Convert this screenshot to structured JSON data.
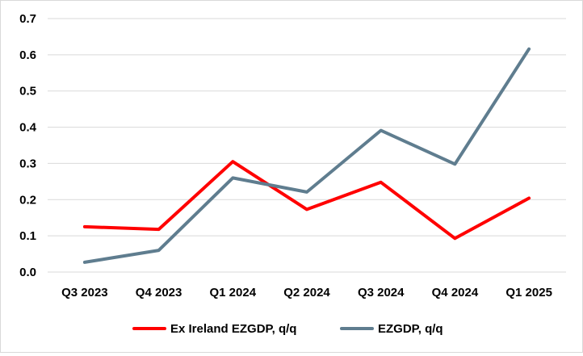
{
  "chart_data": {
    "type": "line",
    "title": "",
    "xlabel": "",
    "ylabel": "",
    "categories": [
      "Q3 2023",
      "Q4 2023",
      "Q1 2024",
      "Q2 2024",
      "Q3 2024",
      "Q4 2024",
      "Q1 2025"
    ],
    "ylim": [
      0,
      0.7
    ],
    "yticks": [
      "0.0",
      "0.1",
      "0.2",
      "0.3",
      "0.4",
      "0.5",
      "0.6",
      "0.7"
    ],
    "grid": true,
    "legend": "bottom",
    "series": [
      {
        "name": "Ex Ireland EZGDP, q/q",
        "color": "#ff0000",
        "values": [
          0.125,
          0.118,
          0.305,
          0.173,
          0.248,
          0.093,
          0.204
        ]
      },
      {
        "name": "EZGDP, q/q",
        "color": "#5f7d8f",
        "values": [
          0.027,
          0.06,
          0.26,
          0.221,
          0.391,
          0.298,
          0.616
        ]
      }
    ]
  }
}
